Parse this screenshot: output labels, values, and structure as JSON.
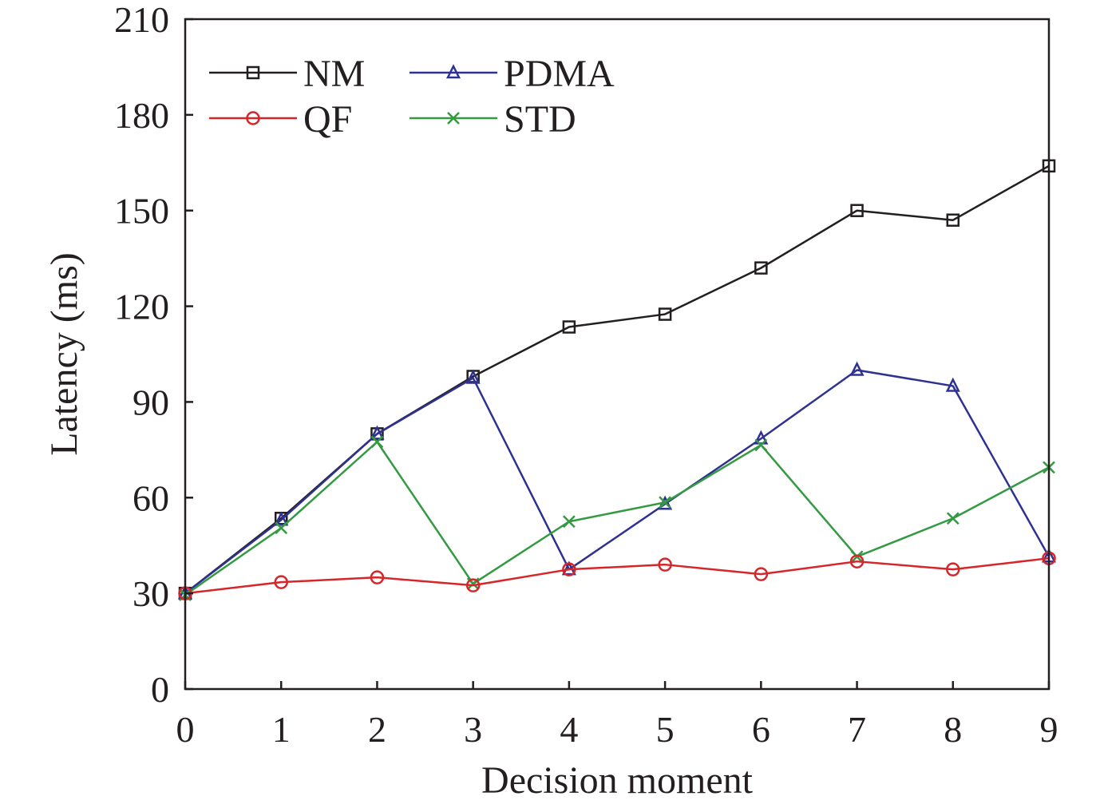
{
  "chart_data": {
    "type": "line",
    "xlabel": "Decision moment",
    "ylabel": "Latency (ms)",
    "xlim": [
      0,
      9
    ],
    "ylim": [
      0,
      210
    ],
    "x": [
      0,
      1,
      2,
      3,
      4,
      5,
      6,
      7,
      8,
      9
    ],
    "x_ticks": [
      "0",
      "1",
      "2",
      "3",
      "4",
      "5",
      "6",
      "7",
      "8",
      "9"
    ],
    "y_ticks": [
      "0",
      "30",
      "60",
      "90",
      "120",
      "150",
      "180",
      "210"
    ],
    "grid": false,
    "legend_position": "top-left",
    "series": [
      {
        "name": "NM",
        "color": "#231f20",
        "marker": "square",
        "values": [
          30,
          53.5,
          80,
          98,
          113.5,
          117.5,
          132,
          150,
          147,
          164
        ]
      },
      {
        "name": "PDMA",
        "color": "#2e3192",
        "marker": "triangle",
        "values": [
          30,
          53,
          80,
          97.5,
          37.5,
          58,
          78.5,
          100,
          95,
          41.5
        ]
      },
      {
        "name": "QF",
        "color": "#d7262a",
        "marker": "circle",
        "values": [
          30,
          33.5,
          35,
          32.5,
          37.5,
          39,
          36,
          40,
          37.5,
          41
        ]
      },
      {
        "name": "STD",
        "color": "#339a41",
        "marker": "x",
        "values": [
          29.5,
          50.5,
          77.5,
          33,
          52.5,
          58.5,
          76.5,
          41.5,
          53.5,
          69.5
        ]
      }
    ]
  }
}
